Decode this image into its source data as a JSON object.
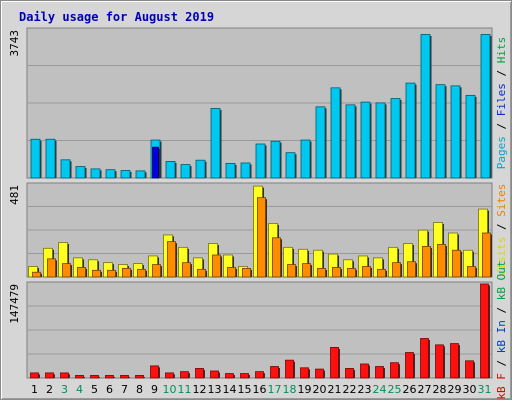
{
  "chart_data": {
    "type": "bar",
    "title": "Daily usage for August 2019",
    "days": [
      "1",
      "2",
      "3",
      "4",
      "5",
      "6",
      "7",
      "8",
      "9",
      "10",
      "11",
      "12",
      "13",
      "14",
      "15",
      "16",
      "17",
      "18",
      "19",
      "20",
      "21",
      "22",
      "23",
      "24",
      "25",
      "26",
      "27",
      "28",
      "29",
      "30",
      "31"
    ],
    "weekend_days": [
      "3",
      "4",
      "10",
      "11",
      "17",
      "18",
      "24",
      "25",
      "31"
    ],
    "panels": [
      {
        "id": "hits",
        "max_label": "3743",
        "ymax": 3743,
        "legend": [
          {
            "name": "Pages",
            "color": "#00a8c8"
          },
          {
            "name": "Files",
            "color": "#0030d0"
          },
          {
            "name": "Hits",
            "color": "#00a040"
          }
        ],
        "series": [
          {
            "name": "Hits",
            "color": "#00c8f0",
            "values": [
              980,
              980,
              460,
              290,
              230,
              210,
              190,
              180,
              960,
              420,
              340,
              450,
              1760,
              370,
              380,
              860,
              930,
              640,
              960,
              1800,
              2280,
              1850,
              1920,
              1900,
              2010,
              2400,
              3630,
              2360,
              2330,
              2090,
              3630
            ]
          },
          {
            "name": "Files",
            "color": "#0000e0",
            "values": [
              null,
              null,
              null,
              null,
              null,
              null,
              null,
              null,
              780,
              null,
              null,
              null,
              null,
              null,
              null,
              null,
              null,
              null,
              null,
              null,
              null,
              null,
              null,
              null,
              null,
              null,
              null,
              null,
              null,
              null,
              null
            ]
          }
        ]
      },
      {
        "id": "visits",
        "max_label": "481",
        "ymax": 481,
        "legend": [
          {
            "name": "Visits",
            "color": "#d8d800"
          },
          {
            "name": "Sites",
            "color": "#f08000"
          }
        ],
        "series": [
          {
            "name": "Visits",
            "color": "#ffff20",
            "values": [
              55,
              150,
              180,
              100,
              90,
              75,
              65,
              70,
              110,
              220,
              155,
              100,
              175,
              115,
              55,
              475,
              280,
              155,
              145,
              140,
              120,
              90,
              110,
              100,
              155,
              175,
              245,
              285,
              230,
              140,
              355
            ]
          },
          {
            "name": "Sites",
            "color": "#ff8c00",
            "values": [
              25,
              95,
              70,
              50,
              35,
              35,
              45,
              40,
              65,
              185,
              75,
              40,
              115,
              50,
              45,
              415,
              205,
              65,
              70,
              45,
              50,
              45,
              55,
              40,
              75,
              80,
              160,
              170,
              140,
              55,
              230
            ]
          }
        ]
      },
      {
        "id": "kbytes",
        "max_label": "147479",
        "ymax": 147479,
        "legend": [
          {
            "name": "kB F",
            "color": "#e00000"
          },
          {
            "name": "kB In",
            "color": "#0040d0"
          },
          {
            "name": "kB Out",
            "color": "#00a040"
          }
        ],
        "series": [
          {
            "name": "kB F",
            "color": "#ff1010",
            "values": [
              8000,
              8000,
              8000,
              4000,
              4000,
              4000,
              4000,
              4000,
              19000,
              8000,
              10000,
              15000,
              11000,
              7000,
              7000,
              10000,
              18000,
              28000,
              16000,
              14000,
              48000,
              15000,
              22000,
              18000,
              24000,
              40000,
              62000,
              52000,
              54000,
              27000,
              147479
            ]
          }
        ]
      }
    ]
  },
  "colors": {
    "background": "#d6d6d6",
    "plot_background": "#c0c0c0",
    "gridline": "#9a9a9a",
    "weekday_label": "#000000",
    "weekend_label": "#00905a"
  }
}
